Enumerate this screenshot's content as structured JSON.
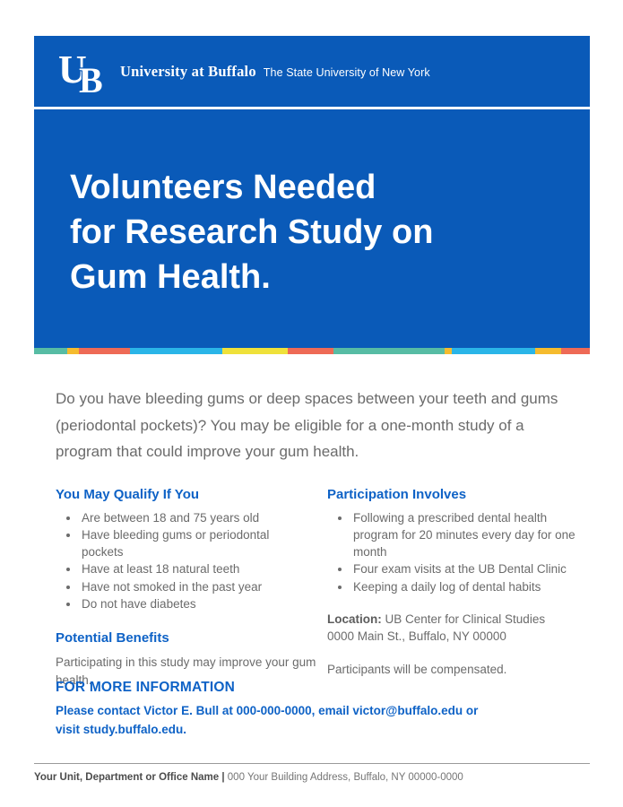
{
  "colors": {
    "ub_blue": "#0a5ab8",
    "heading_blue": "#0e62c6",
    "body_gray": "#6b6b6b"
  },
  "brand": {
    "logo_u": "U",
    "logo_b": "B",
    "wordmark": "University at Buffalo",
    "tagline": "The State University of New York"
  },
  "hero": {
    "title_lines": [
      "Volunteers Needed",
      "for Research Study on",
      "Gum Health."
    ]
  },
  "stripe": {
    "segments": [
      {
        "color": "#57bca4",
        "width_pct": 6.0
      },
      {
        "color": "#f5bb2e",
        "width_pct": 2.1
      },
      {
        "color": "#ee6a56",
        "width_pct": 9.2
      },
      {
        "color": "#2ab5e8",
        "width_pct": 16.6
      },
      {
        "color": "#efe13a",
        "width_pct": 11.8
      },
      {
        "color": "#ee6a56",
        "width_pct": 8.1
      },
      {
        "color": "#57bca4",
        "width_pct": 20.0
      },
      {
        "color": "#f5bb2e",
        "width_pct": 1.3
      },
      {
        "color": "#2ab5e8",
        "width_pct": 15.0
      },
      {
        "color": "#f5bb2e",
        "width_pct": 4.8
      },
      {
        "color": "#ee6a56",
        "width_pct": 5.1
      }
    ]
  },
  "intro": "Do you have bleeding gums or deep spaces between your teeth and gums (periodontal pockets)? You may be eligible for a one-month study of a program that could improve your gum health.",
  "columns": {
    "left": {
      "qualify_heading": "You May Qualify If You",
      "qualify_items": [
        "Are between 18 and 75 years old",
        "Have bleeding gums or periodontal pockets",
        "Have at least 18 natural teeth",
        "Have not smoked in the past year",
        "Do not have diabetes"
      ],
      "benefits_heading": "Potential Benefits",
      "benefits_text": "Participating in this study may improve your gum health."
    },
    "right": {
      "participation_heading": "Participation Involves",
      "participation_items": [
        "Following a prescribed dental health program for 20 minutes every day for one month",
        "Four exam visits at the UB Dental Clinic",
        "Keeping a daily log of dental habits"
      ],
      "location_label": "Location:",
      "location_rest": " UB Center for Clinical Studies",
      "location_line2": "0000 Main St., Buffalo, NY 00000",
      "compensation": "Participants will be compensated."
    }
  },
  "more_info": {
    "heading": "FOR MORE INFORMATION",
    "body_lines": [
      "Please contact Victor E. Bull at 000-000-0000, email victor@buffalo.edu or",
      "visit study.buffalo.edu."
    ]
  },
  "footer": {
    "unit_bold": "Your Unit, Department or Office Name |",
    "address": " 000 Your Building Address, Buffalo, NY 00000-0000"
  }
}
